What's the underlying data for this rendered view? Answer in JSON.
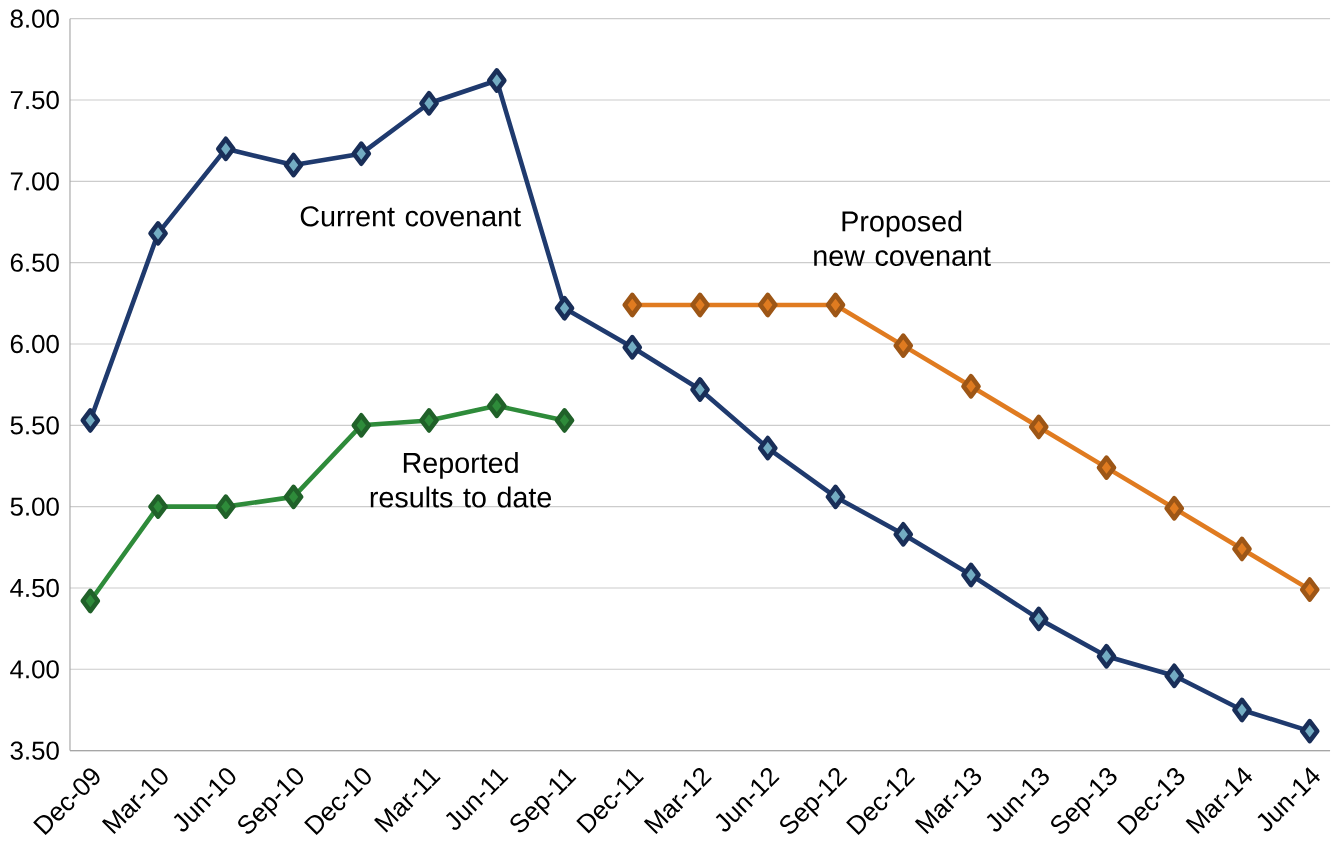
{
  "chart_data": {
    "type": "line",
    "categories": [
      "Dec-09",
      "Mar-10",
      "Jun-10",
      "Sep-10",
      "Dec-10",
      "Mar-11",
      "Jun-11",
      "Sep-11",
      "Dec-11",
      "Mar-12",
      "Jun-12",
      "Sep-12",
      "Dec-12",
      "Mar-13",
      "Jun-13",
      "Sep-13",
      "Dec-13",
      "Mar-14",
      "Jun-14"
    ],
    "series": [
      {
        "name": "Current covenant",
        "color": "#1f3a6e",
        "values": [
          5.53,
          6.68,
          7.2,
          7.1,
          7.17,
          7.48,
          7.62,
          6.22,
          5.98,
          5.72,
          5.36,
          5.06,
          4.83,
          4.58,
          4.31,
          4.08,
          3.96,
          3.75,
          3.62
        ]
      },
      {
        "name": "Proposed new covenant",
        "color": "#e07b20",
        "values": [
          null,
          null,
          null,
          null,
          null,
          null,
          null,
          null,
          6.24,
          6.24,
          6.24,
          6.24,
          5.99,
          5.74,
          5.49,
          5.24,
          4.99,
          4.74,
          4.49
        ]
      },
      {
        "name": "Reported results to date",
        "color": "#2e8b3a",
        "values": [
          4.42,
          5.0,
          5.0,
          5.06,
          5.5,
          5.53,
          5.62,
          5.53,
          null,
          null,
          null,
          null,
          null,
          null,
          null,
          null,
          null,
          null,
          null
        ]
      }
    ],
    "ylim": [
      3.5,
      8.0
    ],
    "yticks": [
      {
        "value": 3.5,
        "label": "3.50"
      },
      {
        "value": 4.0,
        "label": "4.00"
      },
      {
        "value": 4.5,
        "label": "4.50"
      },
      {
        "value": 5.0,
        "label": "5.00"
      },
      {
        "value": 5.5,
        "label": "5.50"
      },
      {
        "value": 6.0,
        "label": "6.00"
      },
      {
        "value": 6.5,
        "label": "6.50"
      },
      {
        "value": 7.0,
        "label": "7.00"
      },
      {
        "value": 7.5,
        "label": "7.50"
      },
      {
        "value": 8.0,
        "label": "8.00"
      }
    ],
    "grid": "y",
    "marker": "diamond",
    "line_style": "solid"
  }
}
